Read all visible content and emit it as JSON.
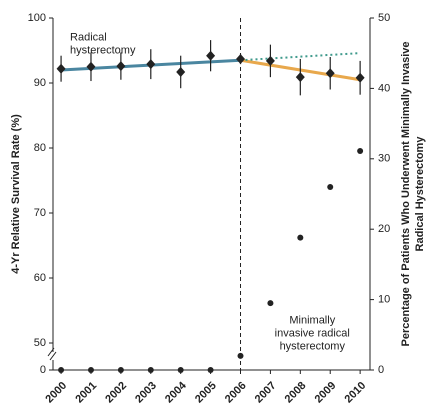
{
  "chart_data": {
    "type": "scatter",
    "y_label": "4-Yr Relative Survival Rate (%)",
    "y2_label_lines": [
      "Percentage of Patients Who Underwent Minimally Invasive",
      "Radical Hysterectomy"
    ],
    "x": [
      2000,
      2001,
      2002,
      2003,
      2004,
      2005,
      2006,
      2007,
      2008,
      2009,
      2010
    ],
    "xlim": [
      1999.73,
      2010.33
    ],
    "xticks": [
      2000,
      2001,
      2002,
      2003,
      2004,
      2005,
      2006,
      2007,
      2008,
      2009,
      2010
    ],
    "ylim": [
      50,
      100
    ],
    "yticks": [
      0,
      50,
      60,
      70,
      80,
      90,
      100
    ],
    "y_axis_break": true,
    "y2lim": [
      0,
      50
    ],
    "y2ticks": [
      0,
      10,
      20,
      30,
      40,
      50
    ],
    "divider_x": 2006,
    "series": [
      {
        "color": "#222222",
        "marker": "diamond",
        "values": [
          92.2,
          92.5,
          92.6,
          92.9,
          91.7,
          94.2,
          93.7,
          93.4,
          90.9,
          91.5,
          90.8
        ],
        "errors": [
          2.0,
          2.2,
          2.1,
          2.3,
          2.5,
          2.4,
          0.8,
          2.5,
          2.8,
          2.5,
          2.6
        ]
      },
      {
        "color": "#222222",
        "marker": "circle",
        "axis": "y2",
        "values": [
          0,
          0,
          0,
          0,
          0,
          0,
          2.0,
          9.5,
          18.8,
          26.0,
          31.1
        ]
      }
    ],
    "trend_lines": [
      {
        "color": "#4a86a0",
        "style": "solid",
        "x": [
          2000,
          2006
        ],
        "values": [
          92.0,
          93.5
        ]
      },
      {
        "color": "#e8a84c",
        "style": "solid",
        "x": [
          2006,
          2010
        ],
        "values": [
          93.5,
          90.5
        ]
      },
      {
        "color": "#3f9a8c",
        "style": "dotted",
        "x": [
          2006,
          2010
        ],
        "values": [
          93.5,
          94.6
        ]
      }
    ],
    "annotations": [
      {
        "lines": [
          "Radical",
          "hysterectomy"
        ],
        "x": 2000.3,
        "y": 97
      },
      {
        "lines": [
          "Minimally",
          "invasive radical",
          "hysterectomy"
        ],
        "x": 2008.4,
        "y": 7
      }
    ]
  }
}
